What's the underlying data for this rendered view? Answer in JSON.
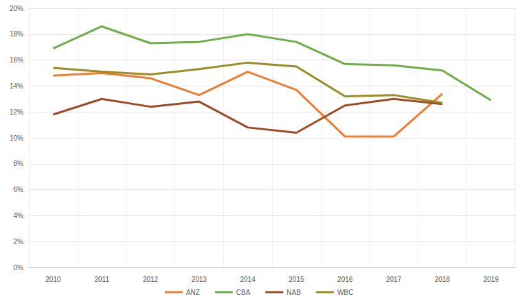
{
  "chart_data": {
    "type": "line",
    "categories": [
      "2010",
      "2011",
      "2012",
      "2013",
      "2014",
      "2015",
      "2016",
      "2017",
      "2018",
      "2019"
    ],
    "series": [
      {
        "name": "ANZ",
        "color": "#ED7D31",
        "values": [
          14.8,
          15.0,
          14.6,
          13.3,
          15.1,
          13.7,
          10.1,
          10.1,
          13.4,
          null
        ]
      },
      {
        "name": "CBA",
        "color": "#70AD47",
        "values": [
          16.9,
          18.6,
          17.3,
          17.4,
          18.0,
          17.4,
          15.7,
          15.6,
          15.2,
          12.9
        ]
      },
      {
        "name": "NAB",
        "color": "#9E4A26",
        "values": [
          11.8,
          13.0,
          12.4,
          12.8,
          10.8,
          10.4,
          12.5,
          13.0,
          12.6,
          null
        ]
      },
      {
        "name": "WBC",
        "color": "#9C8A25",
        "values": [
          15.4,
          15.1,
          14.9,
          15.3,
          15.8,
          15.5,
          13.2,
          13.3,
          12.7,
          null
        ]
      }
    ],
    "ylim": [
      0,
      20
    ],
    "yticks": [
      {
        "value": 0,
        "label": "0%"
      },
      {
        "value": 2,
        "label": "2%"
      },
      {
        "value": 4,
        "label": "4%"
      },
      {
        "value": 6,
        "label": "6%"
      },
      {
        "value": 8,
        "label": "8%"
      },
      {
        "value": 10,
        "label": "10%"
      },
      {
        "value": 12,
        "label": "12%"
      },
      {
        "value": 14,
        "label": "14%"
      },
      {
        "value": 16,
        "label": "16%"
      },
      {
        "value": 18,
        "label": "18%"
      },
      {
        "value": 20,
        "label": "20%"
      }
    ],
    "grid": true,
    "legend": "bottom"
  }
}
